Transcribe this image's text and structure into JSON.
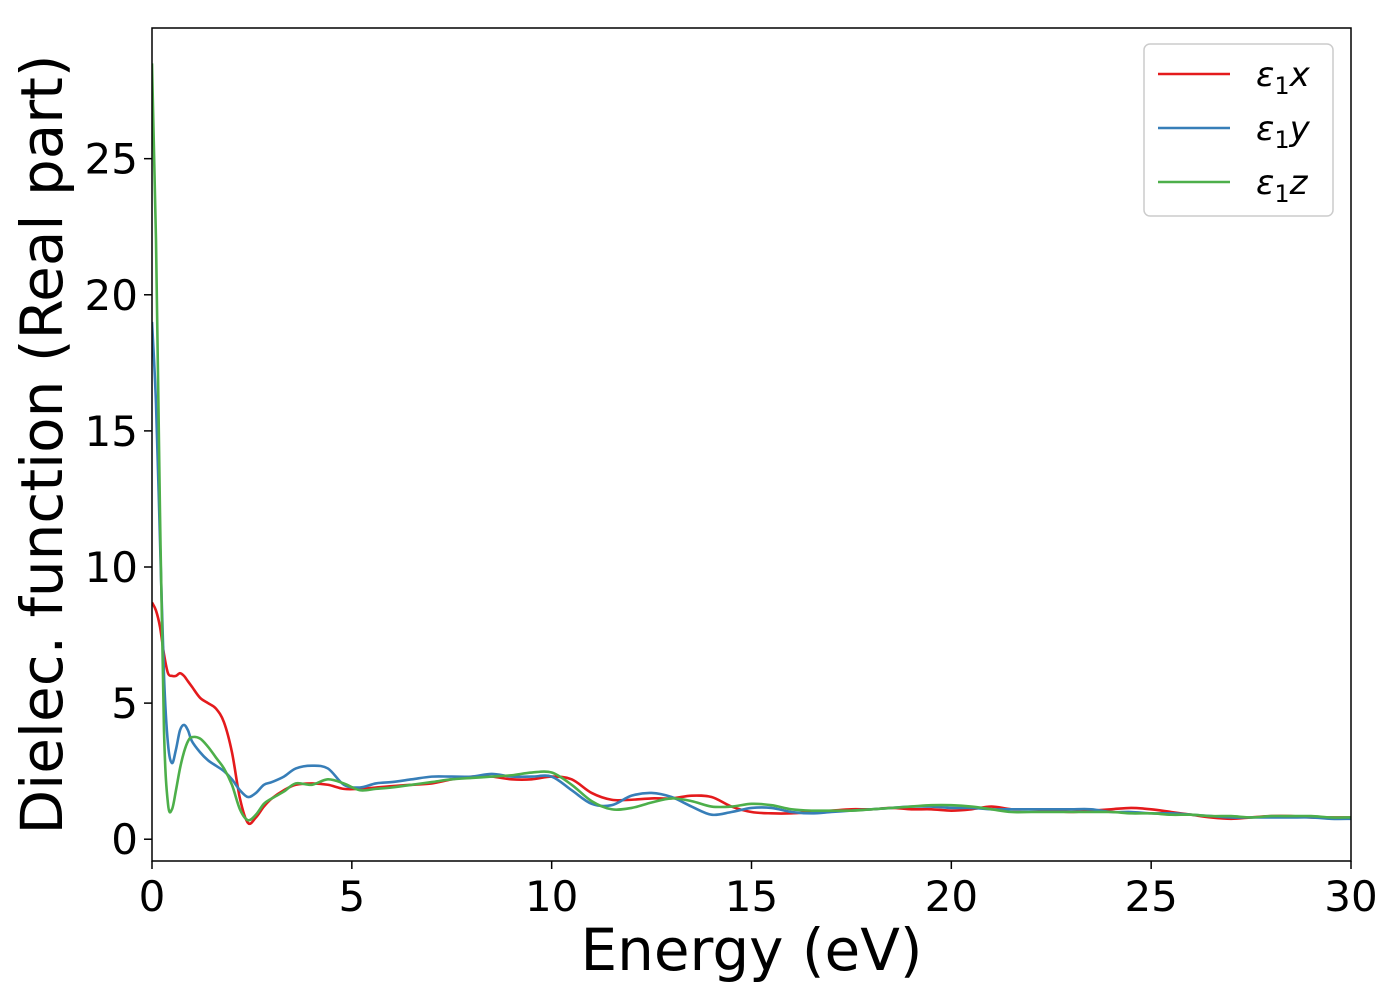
{
  "chart_data": {
    "type": "line",
    "xlabel": "Energy (eV)",
    "ylabel": "Dielec. function (Real part)",
    "xlim": [
      0,
      30
    ],
    "ylim": [
      -0.8,
      29.8
    ],
    "xticks": [
      "0",
      "5",
      "10",
      "15",
      "20",
      "25",
      "30"
    ],
    "yticks": [
      "0",
      "5",
      "10",
      "15",
      "20",
      "25"
    ],
    "grid": false,
    "legend_position": "top-right",
    "series": [
      {
        "name": "x",
        "subscript": "1",
        "color": "#e41a1c",
        "x": [
          0,
          0.1,
          0.2,
          0.3,
          0.4,
          0.5,
          0.6,
          0.7,
          0.8,
          0.9,
          1.0,
          1.2,
          1.4,
          1.6,
          1.8,
          2.0,
          2.2,
          2.4,
          2.6,
          2.8,
          3.0,
          3.3,
          3.6,
          4.0,
          4.4,
          4.8,
          5.2,
          5.6,
          6.0,
          6.5,
          7.0,
          7.5,
          8.0,
          8.5,
          9.0,
          9.5,
          10.0,
          10.5,
          11.0,
          11.5,
          12.0,
          12.5,
          13.0,
          13.5,
          14.0,
          14.5,
          15.0,
          15.5,
          16.0,
          16.5,
          17.0,
          17.5,
          18.0,
          18.5,
          19.0,
          19.5,
          20.0,
          20.5,
          21.0,
          21.5,
          22.0,
          22.5,
          23.0,
          23.5,
          24.0,
          24.5,
          25.0,
          25.5,
          26.0,
          26.5,
          27.0,
          27.5,
          28.0,
          28.5,
          29.0,
          29.5,
          30.0
        ],
        "y": [
          8.7,
          8.4,
          7.8,
          6.8,
          6.1,
          6.0,
          6.0,
          6.1,
          6.0,
          5.8,
          5.6,
          5.2,
          5.0,
          4.8,
          4.3,
          3.2,
          1.5,
          0.6,
          0.8,
          1.2,
          1.5,
          1.8,
          2.0,
          2.05,
          2.0,
          1.85,
          1.85,
          1.9,
          1.95,
          2.0,
          2.05,
          2.2,
          2.3,
          2.3,
          2.2,
          2.2,
          2.3,
          2.2,
          1.7,
          1.45,
          1.45,
          1.5,
          1.5,
          1.6,
          1.55,
          1.2,
          1.0,
          0.95,
          0.95,
          1.0,
          1.05,
          1.1,
          1.1,
          1.15,
          1.1,
          1.1,
          1.05,
          1.1,
          1.2,
          1.1,
          1.1,
          1.05,
          1.0,
          1.05,
          1.1,
          1.15,
          1.1,
          1.0,
          0.9,
          0.8,
          0.75,
          0.8,
          0.85,
          0.85,
          0.8,
          0.8,
          0.8
        ]
      },
      {
        "name": "y",
        "subscript": "1",
        "color": "#377eb8",
        "x": [
          0,
          0.1,
          0.2,
          0.3,
          0.4,
          0.5,
          0.6,
          0.7,
          0.8,
          0.9,
          1.0,
          1.2,
          1.4,
          1.6,
          1.8,
          2.0,
          2.2,
          2.4,
          2.6,
          2.8,
          3.0,
          3.3,
          3.6,
          4.0,
          4.4,
          4.8,
          5.2,
          5.6,
          6.0,
          6.5,
          7.0,
          7.5,
          8.0,
          8.5,
          9.0,
          9.5,
          10.0,
          10.5,
          11.0,
          11.5,
          12.0,
          12.5,
          13.0,
          13.5,
          14.0,
          14.5,
          15.0,
          15.5,
          16.0,
          16.5,
          17.0,
          17.5,
          18.0,
          18.5,
          19.0,
          19.5,
          20.0,
          20.5,
          21.0,
          21.5,
          22.0,
          22.5,
          23.0,
          23.5,
          24.0,
          24.5,
          25.0,
          25.5,
          26.0,
          26.5,
          27.0,
          27.5,
          28.0,
          28.5,
          29.0,
          29.5,
          30.0
        ],
        "y": [
          19.0,
          16.0,
          11.0,
          6.0,
          3.5,
          2.8,
          3.3,
          4.0,
          4.2,
          4.0,
          3.6,
          3.2,
          2.9,
          2.7,
          2.5,
          2.2,
          1.8,
          1.55,
          1.7,
          2.0,
          2.1,
          2.3,
          2.6,
          2.7,
          2.6,
          2.0,
          1.9,
          2.05,
          2.1,
          2.2,
          2.3,
          2.3,
          2.3,
          2.4,
          2.3,
          2.3,
          2.3,
          1.8,
          1.3,
          1.25,
          1.6,
          1.7,
          1.55,
          1.2,
          0.9,
          1.0,
          1.15,
          1.15,
          1.0,
          0.95,
          1.0,
          1.05,
          1.1,
          1.15,
          1.2,
          1.2,
          1.15,
          1.15,
          1.1,
          1.1,
          1.1,
          1.1,
          1.1,
          1.1,
          1.0,
          1.0,
          0.95,
          0.95,
          0.9,
          0.85,
          0.8,
          0.8,
          0.8,
          0.8,
          0.8,
          0.75,
          0.75
        ]
      },
      {
        "name": "z",
        "subscript": "1",
        "color": "#4daf4a",
        "x": [
          0,
          0.1,
          0.2,
          0.3,
          0.4,
          0.5,
          0.6,
          0.7,
          0.8,
          0.9,
          1.0,
          1.2,
          1.4,
          1.6,
          1.8,
          2.0,
          2.2,
          2.4,
          2.6,
          2.8,
          3.0,
          3.3,
          3.6,
          4.0,
          4.4,
          4.8,
          5.2,
          5.6,
          6.0,
          6.5,
          7.0,
          7.5,
          8.0,
          8.5,
          9.0,
          9.5,
          10.0,
          10.5,
          11.0,
          11.5,
          12.0,
          12.5,
          13.0,
          13.5,
          14.0,
          14.5,
          15.0,
          15.5,
          16.0,
          16.5,
          17.0,
          17.5,
          18.0,
          18.5,
          19.0,
          19.5,
          20.0,
          20.5,
          21.0,
          21.5,
          22.0,
          22.5,
          23.0,
          23.5,
          24.0,
          24.5,
          25.0,
          25.5,
          26.0,
          26.5,
          27.0,
          27.5,
          28.0,
          28.5,
          29.0,
          29.5,
          30.0
        ],
        "y": [
          28.5,
          22.0,
          12.0,
          4.0,
          1.3,
          1.1,
          1.8,
          2.6,
          3.2,
          3.6,
          3.75,
          3.7,
          3.4,
          3.0,
          2.6,
          2.0,
          1.1,
          0.7,
          0.9,
          1.3,
          1.5,
          1.75,
          2.05,
          2.0,
          2.2,
          2.05,
          1.8,
          1.85,
          1.9,
          2.0,
          2.1,
          2.2,
          2.25,
          2.3,
          2.35,
          2.45,
          2.45,
          2.0,
          1.4,
          1.1,
          1.15,
          1.35,
          1.5,
          1.4,
          1.2,
          1.2,
          1.3,
          1.25,
          1.1,
          1.05,
          1.05,
          1.05,
          1.1,
          1.15,
          1.2,
          1.25,
          1.25,
          1.2,
          1.1,
          1.0,
          1.0,
          1.0,
          1.0,
          1.0,
          1.0,
          0.95,
          0.95,
          0.9,
          0.9,
          0.85,
          0.85,
          0.8,
          0.85,
          0.85,
          0.85,
          0.8,
          0.8
        ]
      }
    ]
  }
}
